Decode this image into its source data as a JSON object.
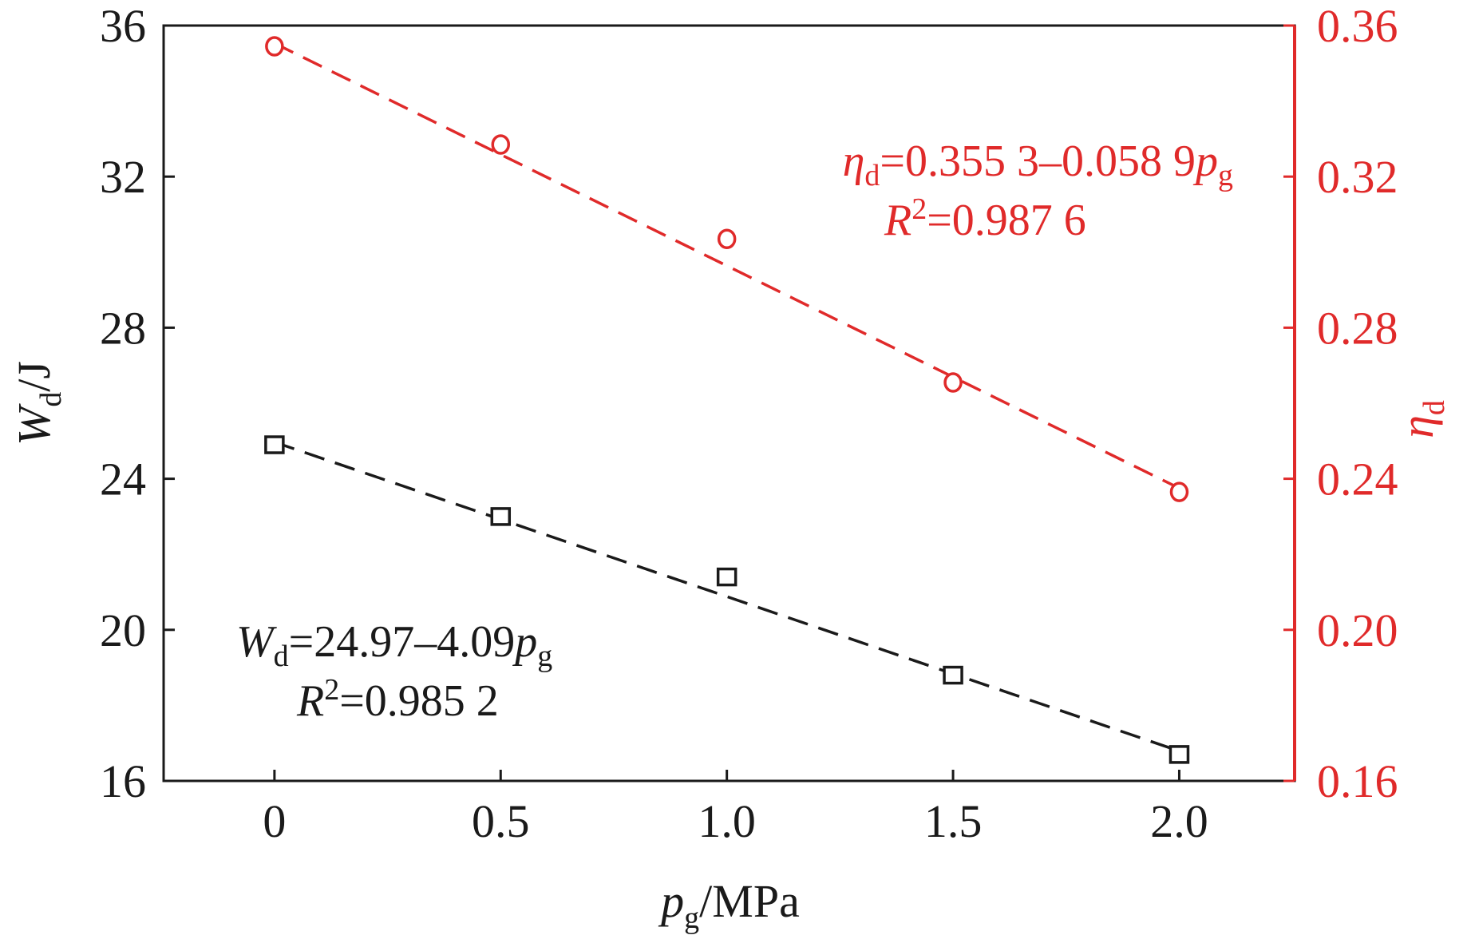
{
  "chart_data": {
    "type": "scatter",
    "x_axis": {
      "label": "p",
      "label_sub": "g",
      "label_suffix": "/MPa",
      "range": [
        -0.245,
        2.255
      ],
      "ticks": [
        0,
        0.5,
        1.0,
        1.5,
        2.0
      ],
      "tick_labels": [
        "0",
        "0.5",
        "1.0",
        "1.5",
        "2.0"
      ]
    },
    "y_left": {
      "label": "W",
      "label_sub": "d",
      "label_suffix": "/J",
      "range": [
        16,
        36
      ],
      "ticks": [
        16,
        20,
        24,
        28,
        32,
        36
      ],
      "tick_labels": [
        "16",
        "20",
        "24",
        "28",
        "32",
        "36"
      ],
      "color": "#1a1a1a"
    },
    "y_right": {
      "label": "η",
      "label_sub": "d",
      "range": [
        0.16,
        0.36
      ],
      "ticks": [
        0.16,
        0.2,
        0.24,
        0.28,
        0.32,
        0.36
      ],
      "tick_labels": [
        "0.16",
        "0.20",
        "0.24",
        "0.28",
        "0.32",
        "0.36"
      ],
      "color": "#e02a2a"
    },
    "series": [
      {
        "name": "Wd",
        "axis": "left",
        "marker": "square",
        "color": "#1a1a1a",
        "x": [
          0,
          0.5,
          1.0,
          1.5,
          2.0
        ],
        "values": [
          24.9,
          23.0,
          21.4,
          18.8,
          16.7
        ],
        "fit": {
          "intercept": 24.97,
          "slope": -4.09,
          "x_range": [
            0,
            2.0
          ]
        },
        "equation": {
          "lhs": "W",
          "lhs_sub": "d",
          "rhs": "=24.97–4.09",
          "var": "p",
          "var_sub": "g",
          "r2_label": "R",
          "r2_sup": "2",
          "r2_value": "=0.985 2"
        }
      },
      {
        "name": "ηd",
        "axis": "right",
        "marker": "circle",
        "color": "#e02a2a",
        "x": [
          0,
          0.5,
          1.0,
          1.5,
          2.0
        ],
        "values": [
          0.3545,
          0.3285,
          0.3035,
          0.2655,
          0.2365
        ],
        "fit": {
          "intercept": 0.3553,
          "slope": -0.0589,
          "x_range": [
            0,
            2.0
          ]
        },
        "equation": {
          "lhs": "η",
          "lhs_sub": "d",
          "rhs": "=0.355 3–0.058 9",
          "var": "p",
          "var_sub": "g",
          "r2_label": "R",
          "r2_sup": "2",
          "r2_value": "=0.987 6"
        }
      }
    ]
  }
}
